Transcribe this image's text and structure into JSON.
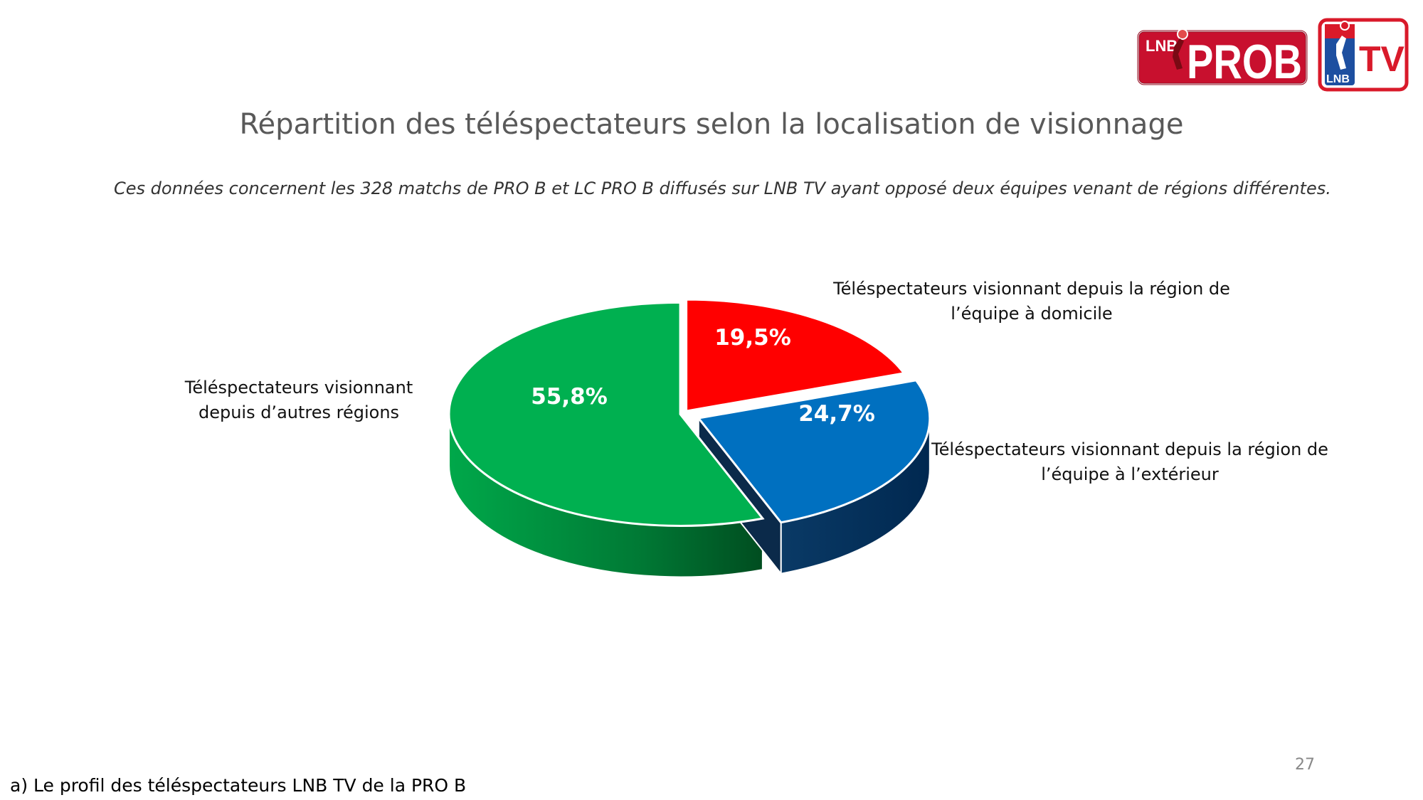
{
  "header": {
    "title": "Répartition des téléspectateurs selon la localisation de visionnage",
    "subtitle": "Ces données concernent les 328 matchs de PRO B et LC PRO B diffusés sur LNB TV ayant opposé deux équipes venant de régions différentes."
  },
  "logos": {
    "prob_small": "LNB",
    "prob_big": "PROB",
    "tv_small": "LNB",
    "tv_big": "TV"
  },
  "chart_data": {
    "type": "pie",
    "title": "Répartition des téléspectateurs selon la localisation de visionnage",
    "slices": [
      {
        "label_lines": [
          "Téléspectateurs visionnant depuis la région de",
          "l’équipe à domicile"
        ],
        "value": 19.5,
        "value_label": "19,5%",
        "color": "#ff0000"
      },
      {
        "label_lines": [
          "Téléspectateurs visionnant depuis la région de",
          "l’équipe à l’extérieur"
        ],
        "value": 24.7,
        "value_label": "24,7%",
        "color": "#0070c0"
      },
      {
        "label_lines": [
          "Téléspectateurs visionnant",
          "depuis d’autres régions"
        ],
        "value": 55.8,
        "value_label": "55,8%",
        "color": "#00b050"
      }
    ],
    "style": "3d-exploded"
  },
  "footer": {
    "section_label": "a) Le profil des téléspectateurs LNB TV de la PRO B",
    "page_number": "27"
  }
}
